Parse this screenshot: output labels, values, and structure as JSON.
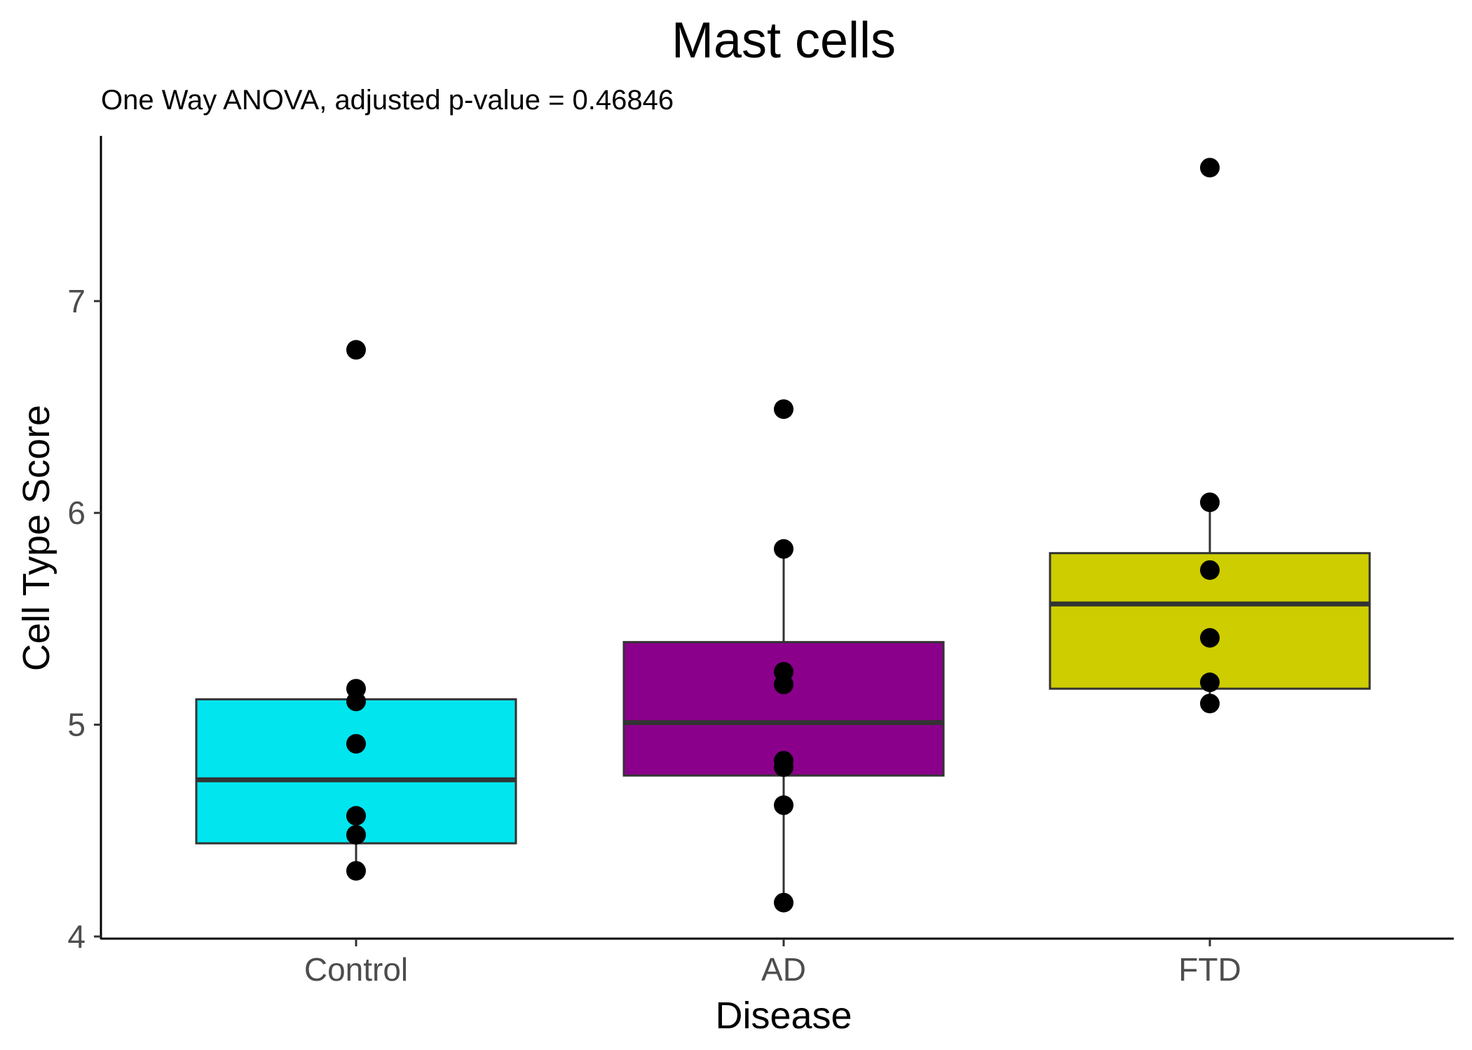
{
  "chart_data": {
    "type": "box",
    "title": "Mast cells",
    "subtitle": "One Way ANOVA, adjusted p-value = 0.46846",
    "xlabel": "Disease",
    "ylabel": "Cell Type Score",
    "ylim": [
      3.99,
      7.78
    ],
    "yticks": [
      "4",
      "5",
      "6",
      "7"
    ],
    "grid": false,
    "legend": "none",
    "categories": [
      "Control",
      "AD",
      "FTD"
    ],
    "boxes": [
      {
        "category": "Control",
        "fill": "#00e5ee",
        "q1": 4.44,
        "median": 4.74,
        "q3": 5.12,
        "whisker_low": 4.31,
        "whisker_high": 5.17,
        "points": [
          6.77,
          5.17,
          5.11,
          4.91,
          4.57,
          4.48,
          4.31
        ]
      },
      {
        "category": "AD",
        "fill": "#8b008b",
        "q1": 4.76,
        "median": 5.01,
        "q3": 5.39,
        "whisker_low": 4.16,
        "whisker_high": 5.83,
        "points": [
          6.49,
          5.83,
          5.25,
          5.19,
          4.83,
          4.8,
          4.62,
          4.16
        ]
      },
      {
        "category": "FTD",
        "fill": "#cdcd00",
        "q1": 5.17,
        "median": 5.57,
        "q3": 5.81,
        "whisker_low": 5.1,
        "whisker_high": 6.05,
        "points": [
          7.63,
          6.05,
          5.73,
          5.41,
          5.2,
          5.1
        ]
      }
    ]
  }
}
